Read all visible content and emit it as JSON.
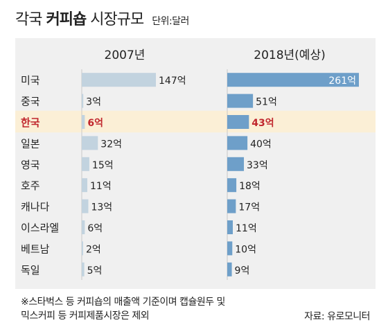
{
  "title": {
    "prefix": "각국",
    "highlight": "커피숍",
    "suffix": "시장규모",
    "unit": "단위:달러"
  },
  "notes": [
    "※스타벅스 등 커피숍의 매출액 기준이며 캡슐원두 및",
    "믹스커피 등 커피제품시장은 제외"
  ],
  "source": "자료: 유로모니터",
  "colors": {
    "panel": "#f0f0f0",
    "bar2007": "#c2d3df",
    "bar2018": "#6e9fc9",
    "highlight_row": "#fbefd6",
    "highlight_text": "#c0262d"
  },
  "chart_data": {
    "type": "bar",
    "orientation": "horizontal",
    "unit_label": "억",
    "highlight_category": "한국",
    "categories": [
      "미국",
      "중국",
      "한국",
      "일본",
      "영국",
      "호주",
      "캐나다",
      "이스라엘",
      "베트남",
      "독일"
    ],
    "series": [
      {
        "name": "2007년",
        "values": [
          147,
          3,
          6,
          32,
          15,
          11,
          13,
          6,
          2,
          5
        ],
        "labels": [
          "147억",
          "3억",
          "6억",
          "32억",
          "15억",
          "11억",
          "13억",
          "6억",
          "2억",
          "5억"
        ]
      },
      {
        "name": "2018년(예상)",
        "values": [
          261,
          51,
          43,
          40,
          33,
          18,
          17,
          11,
          10,
          9
        ],
        "labels": [
          "261억",
          "51억",
          "43억",
          "40억",
          "33억",
          "18억",
          "17억",
          "11억",
          "10억",
          "9억"
        ]
      }
    ]
  }
}
